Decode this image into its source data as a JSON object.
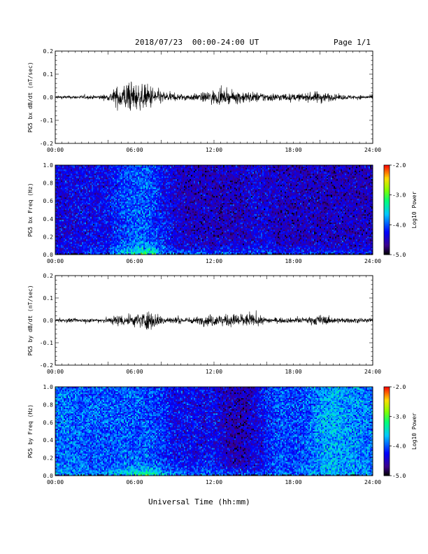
{
  "header": {
    "title": "2018/07/23  00:00-24:00 UT",
    "page": "Page 1/1"
  },
  "footer": {
    "xaxis_title": "Universal Time (hh:mm)"
  },
  "chart_data": [
    {
      "type": "line",
      "ylabel": "PG5 bx dB/dt (nT/sec)",
      "xlim": [
        0,
        24
      ],
      "ylim": [
        -0.2,
        0.2
      ],
      "x_tick_labels": [
        "00:00",
        "06:00",
        "12:00",
        "18:00",
        "24:00"
      ],
      "y_tick_labels": [
        "0.2",
        "0.1",
        "0.0",
        "-0.1",
        "-0.2"
      ],
      "activity_envelope": {
        "hours": [
          0,
          3,
          4,
          4.5,
          5,
          5.5,
          6,
          6.5,
          7,
          7.5,
          8,
          9,
          10,
          11,
          11.5,
          12,
          13,
          14,
          15,
          16,
          17,
          18,
          19,
          20,
          21,
          22,
          24
        ],
        "amplitude": [
          0.006,
          0.007,
          0.012,
          0.035,
          0.05,
          0.06,
          0.055,
          0.045,
          0.05,
          0.04,
          0.025,
          0.015,
          0.012,
          0.015,
          0.025,
          0.028,
          0.022,
          0.025,
          0.02,
          0.017,
          0.015,
          0.013,
          0.015,
          0.025,
          0.012,
          0.009,
          0.007
        ]
      }
    },
    {
      "type": "heatmap",
      "ylabel": "PG5 bx Freq (Hz)",
      "xlim": [
        0,
        24
      ],
      "ylim": [
        0,
        1.0
      ],
      "x_tick_labels": [
        "00:00",
        "06:00",
        "12:00",
        "18:00",
        "24:00"
      ],
      "y_tick_labels": [
        "1.0",
        "0.8",
        "0.6",
        "0.4",
        "0.2",
        "0.0"
      ],
      "colorbar": {
        "label": "Log10 Power",
        "range": [
          -5.0,
          -2.0
        ],
        "tick_labels": [
          "-2.0",
          "-3.0",
          "-4.0",
          "-5.0"
        ]
      },
      "power_profile": {
        "hours": [
          0,
          3,
          4,
          5,
          6,
          7,
          7.5,
          8,
          9,
          10,
          12,
          14,
          15,
          16,
          17,
          18,
          20,
          22,
          24
        ],
        "log_power_low_freq": [
          -4.2,
          -4.1,
          -3.9,
          -3.4,
          -3.0,
          -2.8,
          -3.0,
          -3.5,
          -3.8,
          -3.8,
          -3.9,
          -4.0,
          -3.9,
          -3.8,
          -4.0,
          -4.0,
          -3.9,
          -4.0,
          -4.2
        ],
        "log_power_background": [
          -4.4,
          -4.3,
          -4.3,
          -4.1,
          -4.0,
          -4.0,
          -4.1,
          -4.2,
          -4.4,
          -4.5,
          -4.5,
          -4.5,
          -4.4,
          -4.4,
          -4.5,
          -4.5,
          -4.5,
          -4.5,
          -4.5
        ]
      }
    },
    {
      "type": "line",
      "ylabel": "PG5 by dB/dt (nT/sec)",
      "xlim": [
        0,
        24
      ],
      "ylim": [
        -0.2,
        0.2
      ],
      "x_tick_labels": [
        "00:00",
        "06:00",
        "12:00",
        "18:00",
        "24:00"
      ],
      "y_tick_labels": [
        "0.2",
        "0.1",
        "0.0",
        "-0.1",
        "-0.2"
      ],
      "activity_envelope": {
        "hours": [
          0,
          3,
          4,
          4.5,
          5,
          5.5,
          6,
          6.5,
          7,
          7.5,
          8,
          9,
          10,
          11,
          11.5,
          12,
          13,
          14,
          15,
          16,
          17,
          18,
          19,
          20,
          21,
          22,
          24
        ],
        "amplitude": [
          0.007,
          0.008,
          0.012,
          0.02,
          0.025,
          0.02,
          0.025,
          0.03,
          0.04,
          0.03,
          0.02,
          0.013,
          0.012,
          0.015,
          0.022,
          0.025,
          0.022,
          0.03,
          0.022,
          0.012,
          0.01,
          0.01,
          0.012,
          0.022,
          0.012,
          0.01,
          0.008
        ]
      }
    },
    {
      "type": "heatmap",
      "ylabel": "PG5 by Freq (Hz)",
      "xlim": [
        0,
        24
      ],
      "ylim": [
        0,
        1.0
      ],
      "x_tick_labels": [
        "00:00",
        "06:00",
        "12:00",
        "18:00",
        "24:00"
      ],
      "y_tick_labels": [
        "1.0",
        "0.8",
        "0.6",
        "0.4",
        "0.2",
        "0.0"
      ],
      "colorbar": {
        "label": "Log10 Power",
        "range": [
          -5.0,
          -2.0
        ],
        "tick_labels": [
          "-2.0",
          "-3.0",
          "-4.0",
          "-5.0"
        ]
      },
      "power_profile": {
        "hours": [
          0,
          3,
          4,
          5,
          6,
          7,
          7.5,
          8,
          9,
          10,
          12,
          13,
          14,
          15,
          16,
          17,
          18,
          19,
          20,
          21,
          22,
          24
        ],
        "log_power_low_freq": [
          -3.7,
          -3.8,
          -3.7,
          -3.3,
          -3.0,
          -2.7,
          -2.9,
          -3.3,
          -3.6,
          -3.7,
          -3.8,
          -3.9,
          -3.8,
          -3.9,
          -4.0,
          -3.8,
          -3.9,
          -3.8,
          -3.6,
          -3.6,
          -3.7,
          -3.8
        ],
        "log_power_background": [
          -3.9,
          -4.0,
          -4.0,
          -4.0,
          -4.0,
          -4.0,
          -4.1,
          -4.1,
          -4.3,
          -4.3,
          -4.3,
          -4.5,
          -4.6,
          -4.4,
          -4.2,
          -4.0,
          -4.1,
          -4.0,
          -3.8,
          -3.7,
          -3.8,
          -3.9
        ]
      }
    }
  ]
}
